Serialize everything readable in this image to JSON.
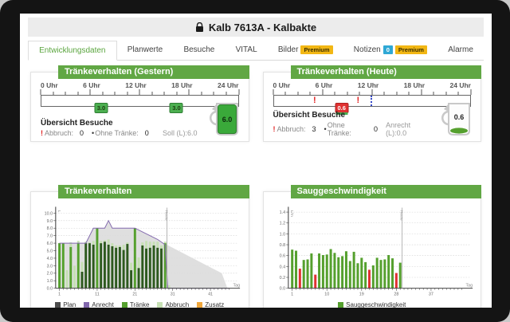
{
  "window": {
    "title": "Kalb 7613A - Kalbakte"
  },
  "icons": {
    "alert_glyph": "!",
    "bullet_glyph": "•"
  },
  "tabs": [
    {
      "label": "Entwicklungsdaten",
      "active": true
    },
    {
      "label": "Planwerte"
    },
    {
      "label": "Besuche"
    },
    {
      "label": "VITAL"
    },
    {
      "label": "Bilder",
      "premium": "Premium"
    },
    {
      "label": "Notizen",
      "count": "0",
      "premium": "Premium"
    },
    {
      "label": "Alarme"
    }
  ],
  "timeline_hours": [
    "0 Uhr",
    "6 Uhr",
    "12 Uhr",
    "18 Uhr",
    "24 Uhr"
  ],
  "gestern": {
    "title": "Tränkeverhalten (Gestern)",
    "markers": [
      {
        "hour": 7.3,
        "value": "3.0",
        "style": "green"
      },
      {
        "hour": 16.5,
        "value": "3.0",
        "style": "green"
      }
    ],
    "alerts": [],
    "overview": {
      "heading": "Übersicht Besuche",
      "abbruch_label": "Abbruch:",
      "abbruch_value": "0",
      "ohne_label": "Ohne Tränke:",
      "ohne_value": "0",
      "right_label": "Soll (L):6.0"
    },
    "jug": {
      "value": "6.0",
      "fill": 1.0
    }
  },
  "heute": {
    "title": "Tränkeverhalten (Heute)",
    "markers": [
      {
        "hour": 8.3,
        "value": "0.6",
        "style": "red"
      }
    ],
    "alerts": [
      {
        "hour": 5.0
      },
      {
        "hour": 10.3
      }
    ],
    "now_hour": 11.8,
    "overview": {
      "heading": "Übersicht Besuche",
      "abbruch_label": "Abbruch:",
      "abbruch_value": "3",
      "ohne_label": "Ohne Tränke:",
      "ohne_value": "0",
      "right_label": "Anrecht (L):0.0"
    },
    "jug": {
      "value": "0.6",
      "fill": 0.15
    }
  },
  "colors": {
    "accent_green": "#61a744",
    "bar_green": "#55a02e",
    "bar_dark_green": "#2d5a1e",
    "bar_light_green": "#c6e0b4",
    "bar_red": "#e03232",
    "anrecht_purple": "#8268ad",
    "plan_gray": "#dcdcdc",
    "zusatz_orange": "#f0a73c",
    "premium_yellow": "#f2b714",
    "count_blue": "#2fa8d5"
  },
  "chart_data": [
    {
      "type": "bar",
      "title": "Tränkeverhalten",
      "ylabel": "L",
      "xlabel": "Tag",
      "ylim": [
        0,
        10.5
      ],
      "yticks": [
        0,
        1,
        2,
        3,
        4,
        5,
        6,
        7,
        8,
        9,
        10
      ],
      "xlim": [
        0,
        47
      ],
      "xticks": [
        1,
        11,
        21,
        31,
        41
      ],
      "heute_x": 29.5,
      "heute_label": "Heute",
      "grid": true,
      "legend_position": "bottom",
      "plan_area": [
        [
          1,
          6
        ],
        [
          8,
          6
        ],
        [
          10,
          8
        ],
        [
          13,
          8
        ],
        [
          14,
          9
        ],
        [
          15,
          8
        ],
        [
          21,
          8
        ],
        [
          44,
          2
        ],
        [
          45.5,
          0
        ]
      ],
      "anrecht_line": [
        [
          1,
          6
        ],
        [
          8,
          6
        ],
        [
          10,
          8
        ],
        [
          13,
          8
        ],
        [
          14,
          9
        ],
        [
          15,
          8
        ],
        [
          21,
          8
        ],
        [
          27,
          6.5
        ],
        [
          29,
          5.8
        ],
        [
          29.7,
          0
        ],
        [
          46,
          0
        ]
      ],
      "categories": [
        1,
        2,
        3,
        4,
        5,
        6,
        7,
        8,
        9,
        10,
        11,
        12,
        13,
        14,
        15,
        16,
        17,
        18,
        19,
        20,
        21,
        22,
        23,
        24,
        25,
        26,
        27,
        28,
        29,
        30
      ],
      "series": [
        {
          "name": "Tränke",
          "values": [
            6.0,
            6.0,
            0,
            5.5,
            0,
            6.0,
            2.2,
            6.0,
            6.0,
            5.8,
            8.0,
            6.0,
            6.2,
            5.8,
            5.6,
            5.4,
            5.5,
            5.1,
            5.9,
            2.4,
            8.0,
            2.7,
            5.7,
            5.3,
            5.4,
            5.7,
            5.4,
            5.3,
            6.0,
            0
          ]
        },
        {
          "name": "Abbruch",
          "values": [
            0,
            0,
            2.4,
            0.6,
            3.0,
            0.3,
            1.3,
            0.2,
            0.1,
            0.5,
            0,
            0.3,
            0.2,
            0.7,
            0.4,
            0.3,
            0.2,
            0.7,
            0.2,
            1.0,
            0,
            1.4,
            0.4,
            1.0,
            0.8,
            0.5,
            0.8,
            0.4,
            0.2,
            0.4
          ]
        }
      ],
      "highlight_days": [
        1,
        2,
        4,
        6,
        11,
        21,
        29
      ],
      "legend": [
        {
          "label": "Plan",
          "color": "#4d4d4d"
        },
        {
          "label": "Anrecht",
          "color": "#8268ad"
        },
        {
          "label": "Tränke",
          "color": "#55a02e"
        },
        {
          "label": "Abbruch",
          "color": "#c6e0b4"
        },
        {
          "label": "Zusatz",
          "color": "#f0a73c"
        }
      ]
    },
    {
      "type": "bar",
      "title": "Sauggeschwindigkeit",
      "ylabel": "L/m",
      "xlabel": "Tag",
      "ylim": [
        0,
        1.45
      ],
      "yticks": [
        0,
        0.2,
        0.4,
        0.6,
        0.8,
        1.0,
        1.2,
        1.4
      ],
      "xlim": [
        0,
        46
      ],
      "xticks": [
        1,
        10,
        19,
        28,
        37
      ],
      "heute_x": 29.5,
      "heute_label": "Heute",
      "grid": true,
      "legend_position": "bottom",
      "categories": [
        1,
        2,
        3,
        4,
        5,
        6,
        7,
        8,
        9,
        10,
        11,
        12,
        13,
        14,
        15,
        16,
        17,
        18,
        19,
        20,
        21,
        22,
        23,
        24,
        25,
        26,
        27,
        28,
        29
      ],
      "values": [
        0.71,
        0.69,
        0.36,
        0.52,
        0.53,
        0.64,
        0.25,
        0.64,
        0.61,
        0.62,
        0.72,
        0.65,
        0.57,
        0.59,
        0.68,
        0.5,
        0.67,
        0.46,
        0.56,
        0.48,
        0.34,
        0.42,
        0.56,
        0.52,
        0.53,
        0.61,
        0.55,
        0.28,
        0.47
      ],
      "alarm_days": [
        3,
        7,
        21,
        28
      ],
      "legend": [
        {
          "label": "Sauggeschwindigkeit",
          "color": "#55a02e"
        }
      ]
    }
  ]
}
